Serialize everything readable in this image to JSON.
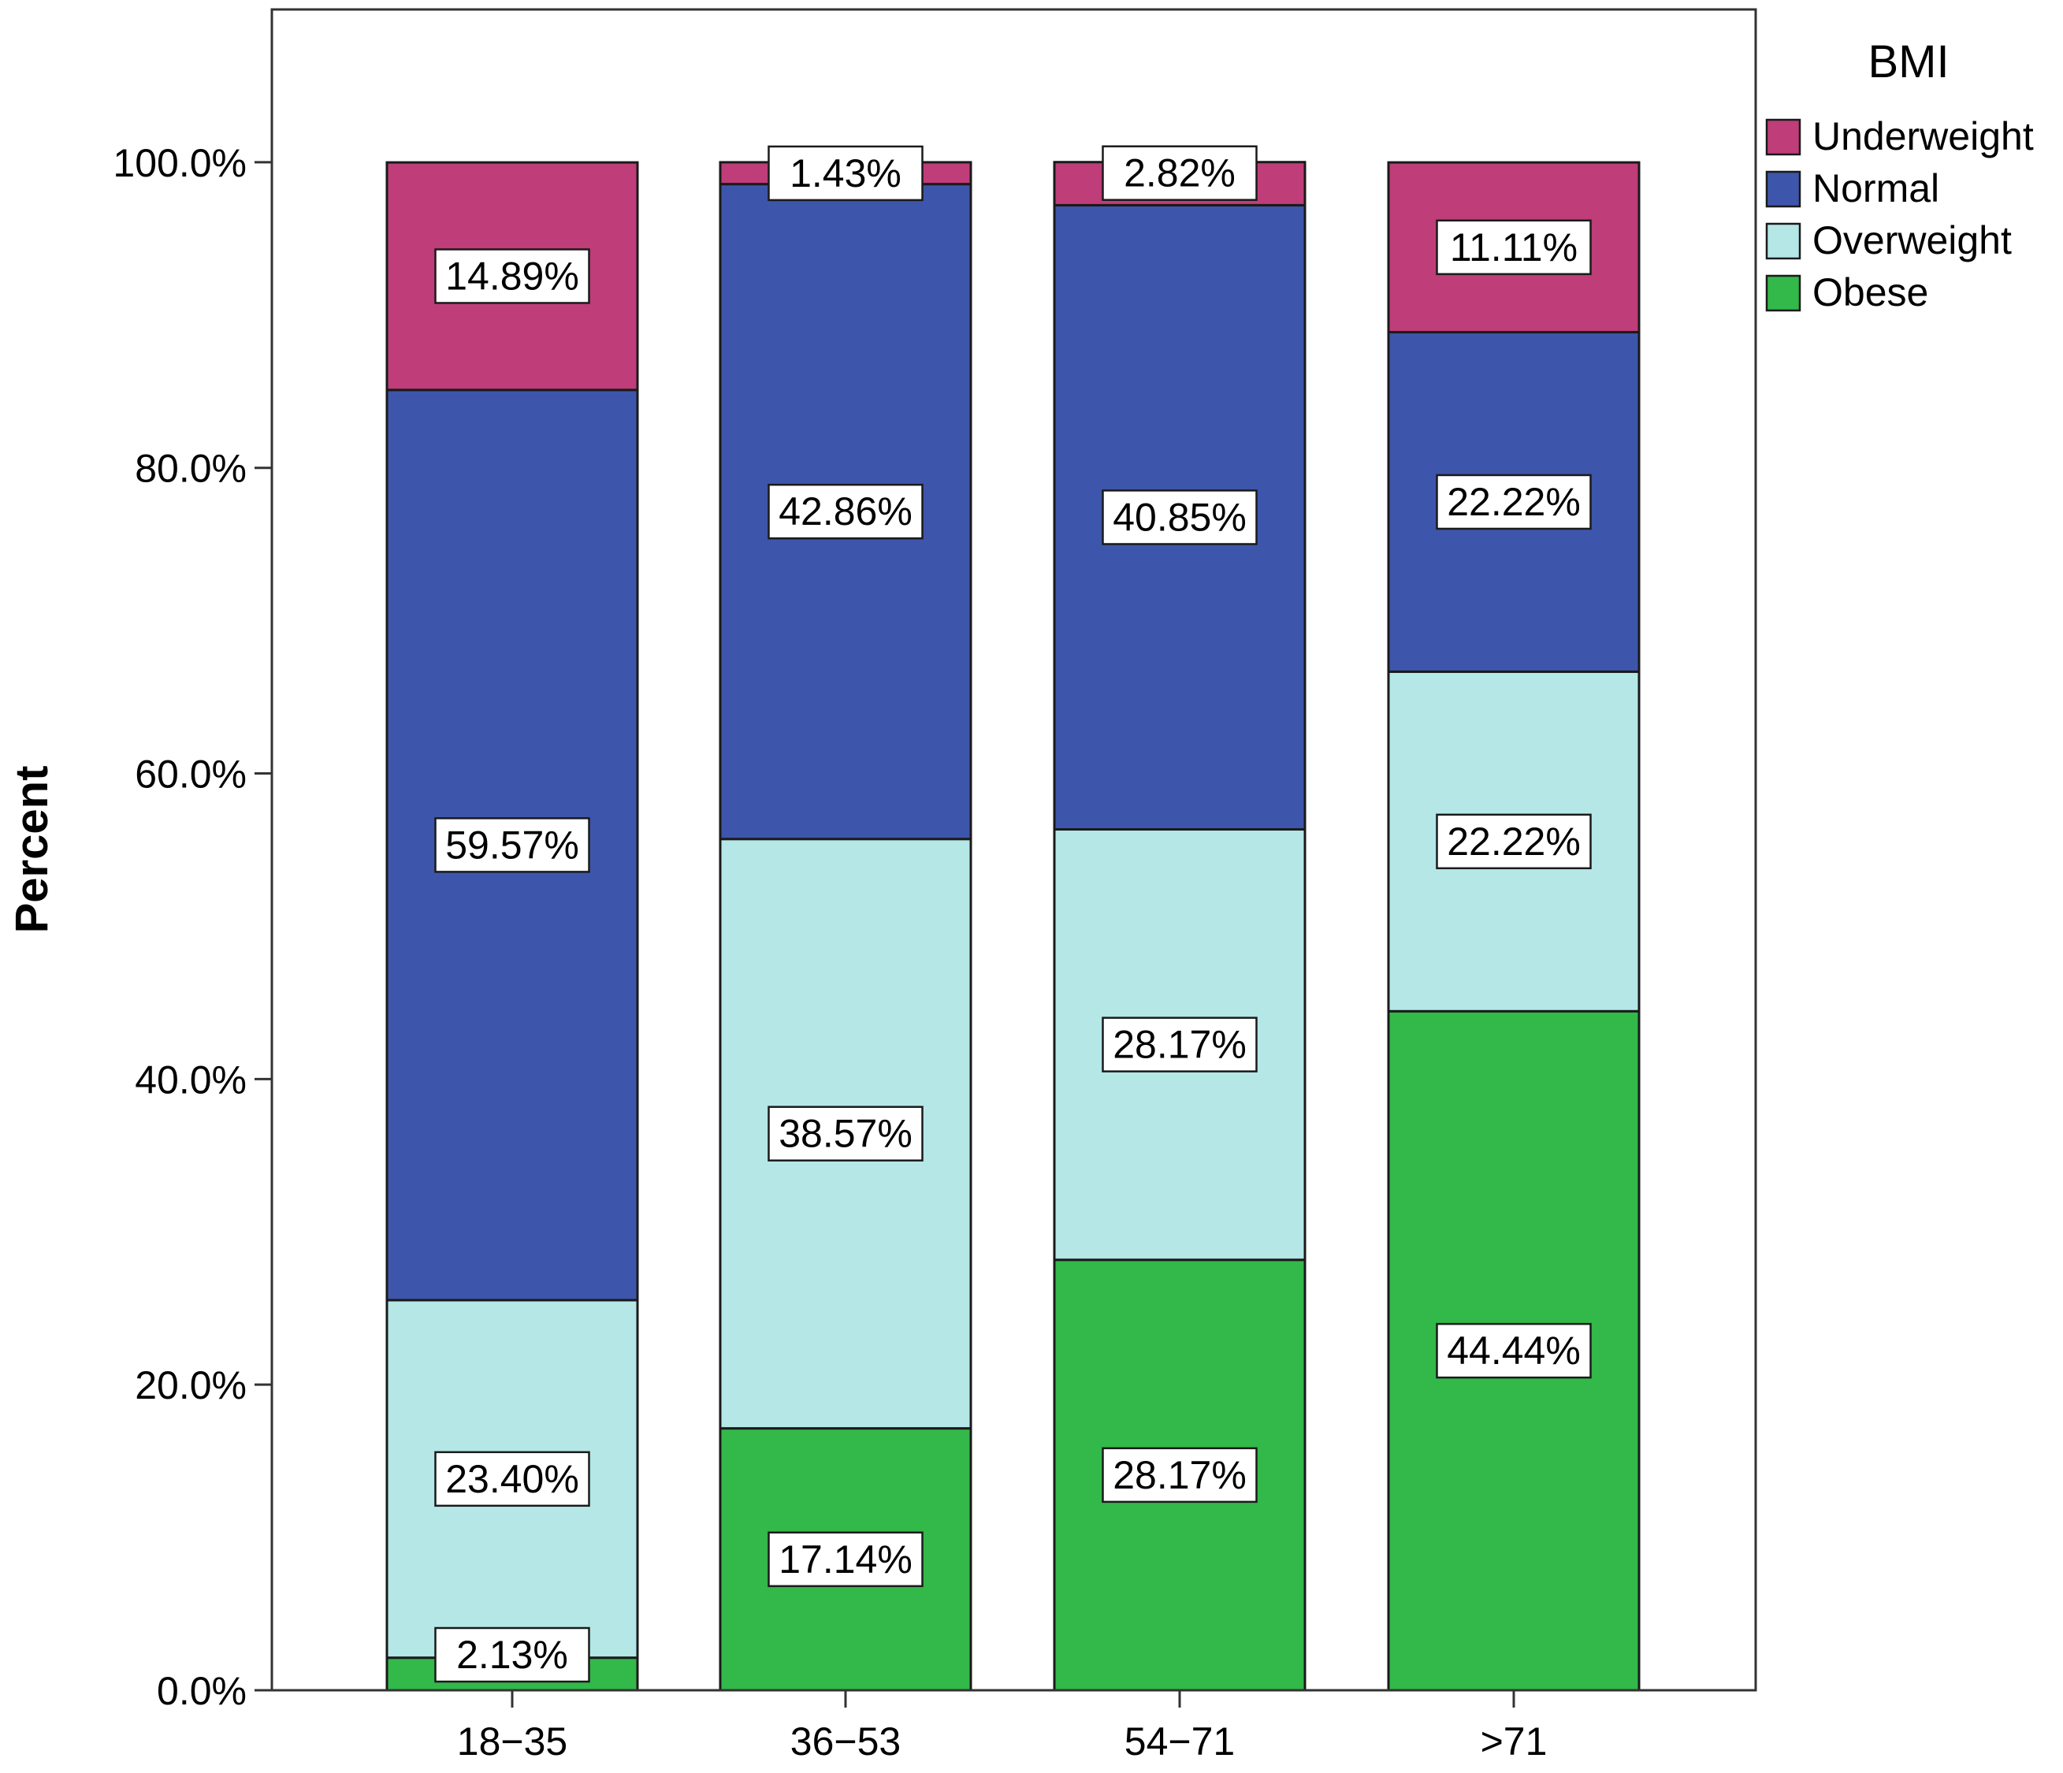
{
  "chart_data": {
    "type": "bar",
    "stacked": true,
    "title": "",
    "xlabel": "",
    "ylabel": "Percent",
    "ylim": [
      0,
      110
    ],
    "y_ticks": [
      0,
      20,
      40,
      60,
      80,
      100
    ],
    "y_tick_labels": [
      "0.0%",
      "20.0%",
      "40.0%",
      "60.0%",
      "80.0%",
      "100.0%"
    ],
    "categories": [
      "18−35",
      "36−53",
      "54−71",
      ">71"
    ],
    "legend": {
      "title": "BMI",
      "position": "top-right"
    },
    "series": [
      {
        "name": "Obese",
        "color": "#33b84a",
        "values": [
          2.13,
          17.14,
          28.17,
          44.44
        ],
        "labels": [
          "2.13%",
          "17.14%",
          "28.17%",
          "44.44%"
        ]
      },
      {
        "name": "Overweight",
        "color": "#b5e7e7",
        "values": [
          23.4,
          38.57,
          28.17,
          22.22
        ],
        "labels": [
          "23.40%",
          "38.57%",
          "28.17%",
          "22.22%"
        ]
      },
      {
        "name": "Normal",
        "color": "#3d56ab",
        "values": [
          59.57,
          42.86,
          40.85,
          22.22
        ],
        "labels": [
          "59.57%",
          "42.86%",
          "40.85%",
          "22.22%"
        ]
      },
      {
        "name": "Underweight",
        "color": "#bf3d78",
        "values": [
          14.89,
          1.43,
          2.82,
          11.11
        ],
        "labels": [
          "14.89%",
          "1.43%",
          "2.82%",
          "11.11%"
        ]
      }
    ],
    "legend_order": [
      "Underweight",
      "Normal",
      "Overweight",
      "Obese"
    ]
  }
}
